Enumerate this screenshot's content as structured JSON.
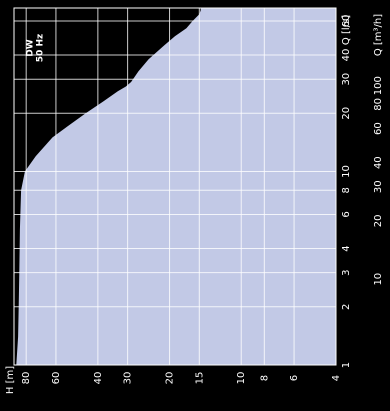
{
  "chart_data": {
    "type": "area",
    "title": "DW",
    "subtitle": "50 Hz",
    "orientation": "rotated-90-cw",
    "q_ls_axis": {
      "label": "Q [l/s]",
      "scale": "log",
      "range": [
        1,
        70
      ],
      "ticks": [
        "1",
        "2",
        "3",
        "4",
        "6",
        "8",
        "10",
        "20",
        "30",
        "40",
        "60"
      ],
      "tick_values": [
        1,
        2,
        3,
        4,
        6,
        8,
        10,
        20,
        30,
        40,
        60
      ]
    },
    "q_m3h_axis": {
      "label": "Q [m³/h]",
      "scale": "log",
      "ticks": [
        "10",
        "20",
        "30",
        "40",
        "60",
        "80",
        "100"
      ],
      "tick_values": [
        10,
        20,
        30,
        40,
        60,
        80,
        100
      ]
    },
    "h_axis": {
      "label": "H [m]",
      "scale": "log",
      "range": [
        4,
        90
      ],
      "ticks": [
        "80",
        "60",
        "40",
        "30",
        "20",
        "15",
        "10",
        "8",
        "6",
        "4"
      ],
      "tick_values": [
        80,
        60,
        40,
        30,
        20,
        15,
        10,
        8,
        6,
        4
      ]
    },
    "grid": true,
    "series": [
      {
        "fill_color": "#c2c9e6",
        "points_q_ls_h_m": [
          [
            1.0,
            88
          ],
          [
            1.4,
            86.5
          ],
          [
            2,
            86
          ],
          [
            3,
            85.5
          ],
          [
            5,
            85
          ],
          [
            8,
            84
          ],
          [
            10,
            81
          ],
          [
            12,
            73
          ],
          [
            15,
            62
          ],
          [
            17,
            54
          ],
          [
            20,
            45
          ],
          [
            23,
            38
          ],
          [
            26,
            33
          ],
          [
            27.5,
            30.5
          ],
          [
            29,
            29
          ],
          [
            33,
            27
          ],
          [
            38,
            24.5
          ],
          [
            45,
            21
          ],
          [
            50,
            19
          ],
          [
            55,
            17
          ],
          [
            60,
            16
          ],
          [
            65,
            15
          ],
          [
            68,
            14.8
          ],
          [
            70,
            14.8
          ],
          [
            70,
            4
          ],
          [
            1.0,
            4
          ]
        ]
      }
    ]
  },
  "colors": {
    "background": "#000000",
    "area_fill": "#c2c9e6",
    "grid_line": "#ffffff",
    "text": "#ffffff"
  }
}
